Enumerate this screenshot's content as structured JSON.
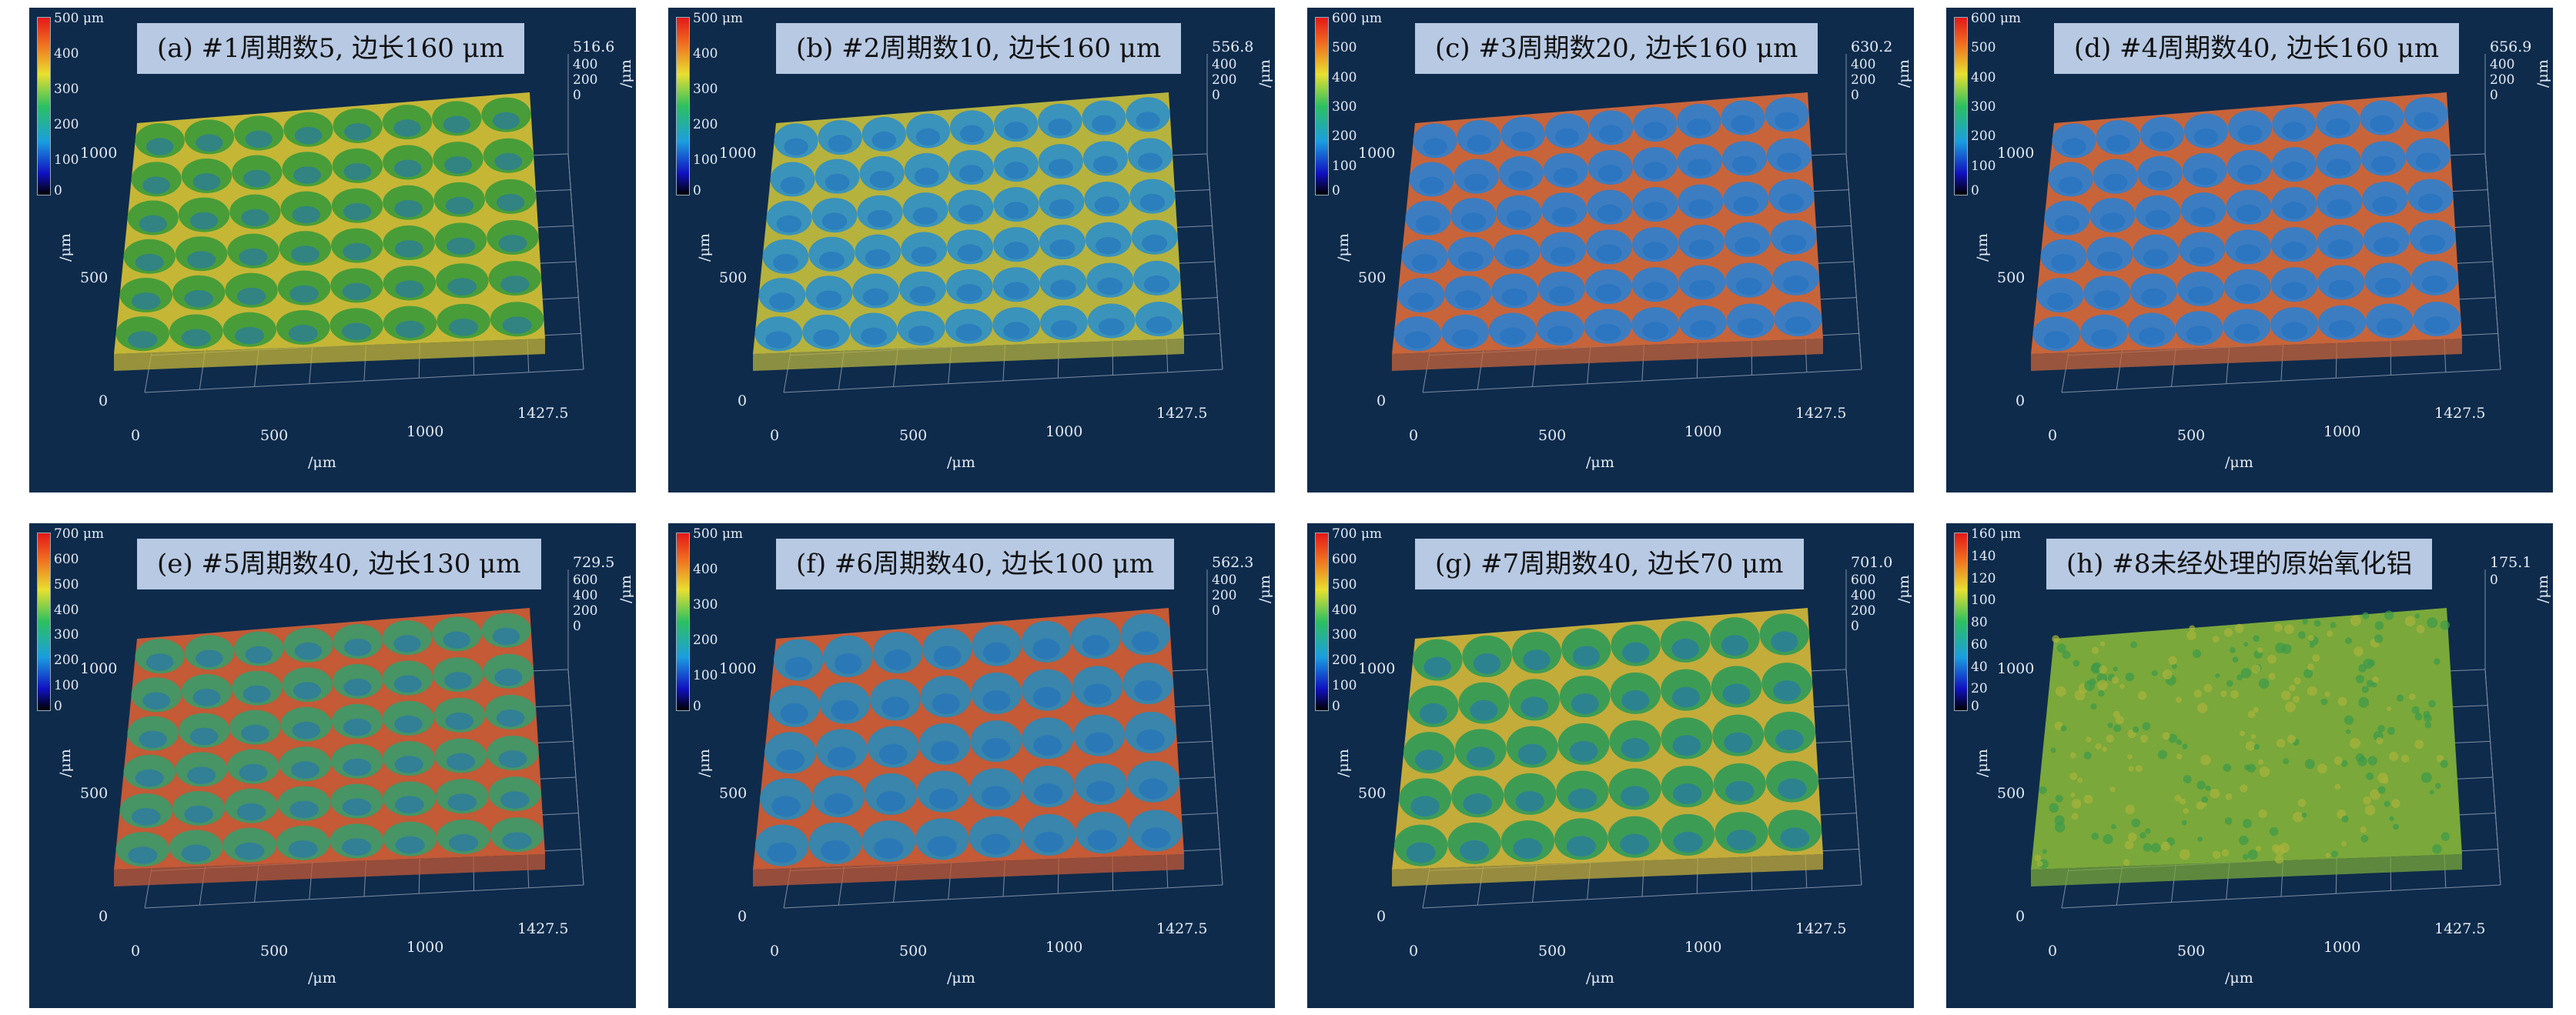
{
  "panels": [
    {
      "title": "(a) #1周期数5, 边长160 μm",
      "colorbar": {
        "ticks": [
          "500 μm",
          "400",
          "300",
          "200",
          "100",
          "0"
        ]
      },
      "z": {
        "max": "516.6",
        "ticks": [
          "400",
          "200",
          "0"
        ],
        "unit": "/μm"
      },
      "y": {
        "ticks": [
          "1000",
          "500",
          "0"
        ],
        "unit": "/μm"
      },
      "x": {
        "ticks": [
          "0",
          "500",
          "1000",
          "1427.5"
        ],
        "unit": "/μm"
      },
      "surface": {
        "base": "#c6b636",
        "pit": "#3a9a3a",
        "rows": 6,
        "cols": 8
      }
    },
    {
      "title": "(b) #2周期数10, 边长160 μm",
      "colorbar": {
        "ticks": [
          "500 μm",
          "400",
          "300",
          "200",
          "100",
          "0"
        ]
      },
      "z": {
        "max": "556.8",
        "ticks": [
          "400",
          "200",
          "0"
        ],
        "unit": "/μm"
      },
      "y": {
        "ticks": [
          "1000",
          "500",
          "0"
        ],
        "unit": "/μm"
      },
      "x": {
        "ticks": [
          "0",
          "500",
          "1000",
          "1427.5"
        ],
        "unit": "/μm"
      },
      "surface": {
        "base": "#b6b23e",
        "pit": "#2c8fc8",
        "rows": 6,
        "cols": 9
      }
    },
    {
      "title": "(c) #3周期数20, 边长160 μm",
      "colorbar": {
        "ticks": [
          "600 μm",
          "500",
          "400",
          "300",
          "200",
          "100",
          "0"
        ]
      },
      "z": {
        "max": "630.2",
        "ticks": [
          "400",
          "200",
          "0"
        ],
        "unit": "/μm"
      },
      "y": {
        "ticks": [
          "1000",
          "500",
          "0"
        ],
        "unit": "/μm"
      },
      "x": {
        "ticks": [
          "0",
          "500",
          "1000",
          "1427.5"
        ],
        "unit": "/μm"
      },
      "surface": {
        "base": "#c8643a",
        "pit": "#2c7fd0",
        "rows": 6,
        "cols": 9
      }
    },
    {
      "title": "(d) #4周期数40, 边长160 μm",
      "colorbar": {
        "ticks": [
          "600 μm",
          "500",
          "400",
          "300",
          "200",
          "100",
          "0"
        ]
      },
      "z": {
        "max": "656.9",
        "ticks": [
          "400",
          "200",
          "0"
        ],
        "unit": "/μm"
      },
      "y": {
        "ticks": [
          "1000",
          "500",
          "0"
        ],
        "unit": "/μm"
      },
      "x": {
        "ticks": [
          "0",
          "500",
          "1000",
          "1427.5"
        ],
        "unit": "/μm"
      },
      "surface": {
        "base": "#c8643a",
        "pit": "#2c7fd0",
        "rows": 6,
        "cols": 9
      }
    },
    {
      "title": "(e) #5周期数40, 边长130 μm",
      "colorbar": {
        "ticks": [
          "700 μm",
          "600",
          "500",
          "400",
          "300",
          "200",
          "100",
          "0"
        ]
      },
      "z": {
        "max": "729.5",
        "ticks": [
          "600",
          "400",
          "200",
          "0"
        ],
        "unit": "/μm"
      },
      "y": {
        "ticks": [
          "1000",
          "500",
          "0"
        ],
        "unit": "/μm"
      },
      "x": {
        "ticks": [
          "0",
          "500",
          "1000",
          "1427.5"
        ],
        "unit": "/μm"
      },
      "surface": {
        "base": "#c45a36",
        "pit": "#3a9a6a",
        "rows": 6,
        "cols": 8
      }
    },
    {
      "title": "(f) #6周期数40, 边长100 μm",
      "colorbar": {
        "ticks": [
          "500 μm",
          "400",
          "300",
          "200",
          "100",
          "0"
        ]
      },
      "z": {
        "max": "562.3",
        "ticks": [
          "400",
          "200",
          "0"
        ],
        "unit": "/μm"
      },
      "y": {
        "ticks": [
          "1000",
          "500",
          "0"
        ],
        "unit": "/μm"
      },
      "x": {
        "ticks": [
          "0",
          "500",
          "1000",
          "1427.5"
        ],
        "unit": "/μm"
      },
      "surface": {
        "base": "#c45a36",
        "pit": "#2a8ab8",
        "rows": 5,
        "cols": 8
      }
    },
    {
      "title": "(g) #7周期数40, 边长70 μm",
      "colorbar": {
        "ticks": [
          "700 μm",
          "600",
          "500",
          "400",
          "300",
          "200",
          "100",
          "0"
        ]
      },
      "z": {
        "max": "701.0",
        "ticks": [
          "600",
          "400",
          "200",
          "0"
        ],
        "unit": "/μm"
      },
      "y": {
        "ticks": [
          "1000",
          "500",
          "0"
        ],
        "unit": "/μm"
      },
      "x": {
        "ticks": [
          "0",
          "500",
          "1000",
          "1427.5"
        ],
        "unit": "/μm"
      },
      "surface": {
        "base": "#c4ac3a",
        "pit": "#2f9a58",
        "rows": 5,
        "cols": 8
      }
    },
    {
      "title": "(h) #8未经处理的原始氧化铝",
      "colorbar": {
        "ticks": [
          "160 μm",
          "140",
          "120",
          "100",
          "80",
          "60",
          "40",
          "20",
          "0"
        ]
      },
      "z": {
        "max": "175.1",
        "ticks": [
          "0"
        ],
        "unit": "/μm"
      },
      "y": {
        "ticks": [
          "1000",
          "500",
          "0"
        ],
        "unit": "/μm"
      },
      "x": {
        "ticks": [
          "0",
          "500",
          "1000",
          "1427.5"
        ],
        "unit": "/μm"
      },
      "surface": {
        "base": "#7aa83a",
        "pit": "#4a9a4a",
        "rows": 0,
        "cols": 0
      }
    }
  ]
}
